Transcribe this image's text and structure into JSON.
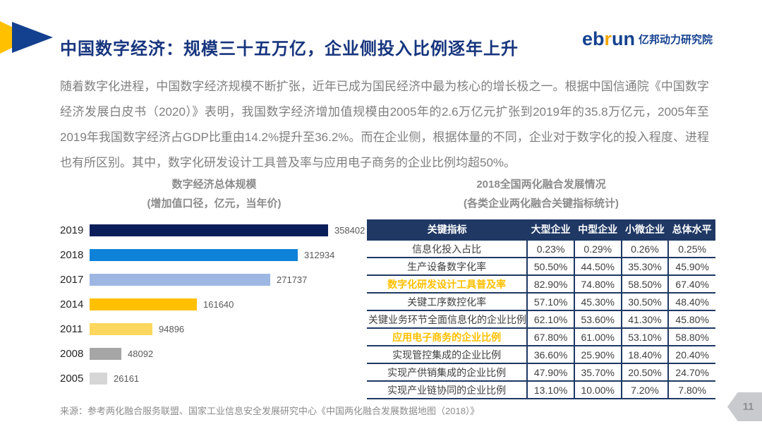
{
  "header": {
    "title": "中国数字经济：规模三十五万亿，企业侧投入比例逐年上升",
    "logo": {
      "eb": "eb",
      "r": "r",
      "un": "un",
      "suffix": "亿邦动力研究院"
    }
  },
  "paragraph": "随着数字化进程，中国数字经济规模不断扩张，近年已成为国民经济中最为核心的增长极之一。根据中国信通院《中国数字经济发展白皮书（2020）》表明，我国数字经济增加值规模由2005年的2.6万亿元扩张到2019年的35.8万亿元，2005年至2019年我国数字经济占GDP比重由14.2%提升至36.2%。而在企业侧，根据体量的不同，企业对于数字化的投入程度、进程也有所区别。其中，数字化研发设计工具普及率与应用电子商务的企业比例均超50%。",
  "chart_data": [
    {
      "type": "bar",
      "orientation": "horizontal",
      "title": "数字经济总体规模",
      "subtitle": "(增加值口径，亿元，当年价)",
      "categories": [
        "2019",
        "2018",
        "2017",
        "2014",
        "2011",
        "2008",
        "2005"
      ],
      "values": [
        358402,
        312934,
        271737,
        161640,
        94896,
        48092,
        26161
      ],
      "bar_colors": [
        "#0A1E5A",
        "#0E82D8",
        "#9DB7E2",
        "#FFC000",
        "#FFD75E",
        "#A6A6A6",
        "#D6D6D6"
      ],
      "xlim": [
        0,
        380000
      ],
      "data_labels": true,
      "grid": false,
      "legend": false
    },
    {
      "type": "table",
      "title": "2018全国两化融合发展情况",
      "subtitle": "(各类企业两化融合关键指标统计)",
      "headers": [
        "关键指标",
        "大型企业",
        "中型企业",
        "小微企业",
        "总体水平"
      ],
      "rows": [
        {
          "label": "信息化投入占比",
          "values": [
            "0.23%",
            "0.29%",
            "0.26%",
            "0.25%"
          ],
          "highlight": false
        },
        {
          "label": "生产设备数字化率",
          "values": [
            "50.50%",
            "44.50%",
            "35.30%",
            "45.90%"
          ],
          "highlight": false
        },
        {
          "label": "数字化研发设计工具普及率",
          "values": [
            "82.90%",
            "74.80%",
            "58.50%",
            "67.40%"
          ],
          "highlight": true
        },
        {
          "label": "关键工序数控化率",
          "values": [
            "57.10%",
            "45.30%",
            "30.50%",
            "48.40%"
          ],
          "highlight": false
        },
        {
          "label": "关键业务环节全面信息化的企业比例",
          "values": [
            "62.10%",
            "53.60%",
            "41.30%",
            "45.80%"
          ],
          "highlight": false
        },
        {
          "label": "应用电子商务的企业比例",
          "values": [
            "67.80%",
            "61.00%",
            "53.10%",
            "58.80%"
          ],
          "highlight": true
        },
        {
          "label": "实现管控集成的企业比例",
          "values": [
            "36.60%",
            "25.90%",
            "18.40%",
            "20.40%"
          ],
          "highlight": false
        },
        {
          "label": "实现产供销集成的企业比例",
          "values": [
            "47.90%",
            "35.70%",
            "20.50%",
            "24.70%"
          ],
          "highlight": false
        },
        {
          "label": "实现产业链协同的企业比例",
          "values": [
            "13.10%",
            "10.00%",
            "7.20%",
            "7.80%"
          ],
          "highlight": false
        }
      ],
      "highlight_color": "#FFC000",
      "header_bg": "#1F3864"
    }
  ],
  "footer": {
    "source": "来源：参考两化融合服务联盟、国家工业信息安全发展研究中心《中国两化融合发展数据地图（2018）》",
    "page": "11"
  },
  "colors": {
    "title_navy": "#17357E",
    "logo_blue": "#14418F",
    "logo_orange": "#F7A600",
    "accent_gold": "#FFC000",
    "table_navy": "#1F3864",
    "body_gray": "#7F7F7F"
  }
}
